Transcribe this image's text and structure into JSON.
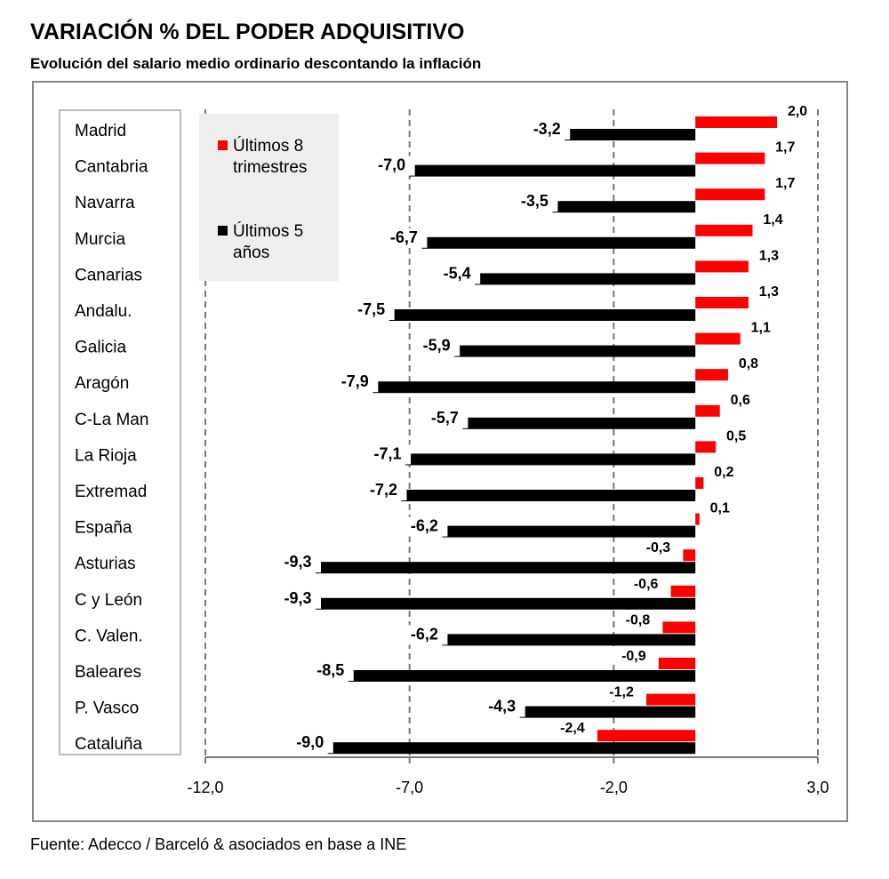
{
  "header": {
    "title": "VARIACIÓN % DEL PODER ADQUISITIVO",
    "subtitle": "Evolución del salario medio ordinario descontando la inflación"
  },
  "footer": {
    "source": "Fuente: Adecco / Barceló & asociados en base a INE"
  },
  "colors": {
    "series_8t": "#ff0000",
    "series_5a": "#000000",
    "gridline": "#777777",
    "legend_bg": "#eeeeee"
  },
  "chart_data": {
    "type": "bar",
    "orientation": "horizontal",
    "categories": [
      "Madrid",
      "Cantabria",
      "Navarra",
      "Murcia",
      "Canarias",
      "Andalu.",
      "Galicia",
      "Aragón",
      "C-La Man",
      "La Rioja",
      "Extremad",
      "España",
      "Asturias",
      "C y León",
      "C. Valen.",
      "Baleares",
      "P. Vasco",
      "Cataluña"
    ],
    "series": [
      {
        "name": "Últimos 8 trimestres",
        "color": "#ff0000",
        "values": [
          2.0,
          1.7,
          1.7,
          1.4,
          1.3,
          1.3,
          1.1,
          0.8,
          0.6,
          0.5,
          0.2,
          0.1,
          -0.3,
          -0.6,
          -0.8,
          -0.9,
          -1.2,
          -2.4
        ],
        "labels": [
          "2,0",
          "1,7",
          "1,7",
          "1,4",
          "1,3",
          "1,3",
          "1,1",
          "0,8",
          "0,6",
          "0,5",
          "0,2",
          "0,1",
          "-0,3",
          "-0,6",
          "-0,8",
          "-0,9",
          "-1,2",
          "-2,4"
        ]
      },
      {
        "name": "Últimos 5 años",
        "color": "#000000",
        "values": [
          -3.2,
          -7.0,
          -3.5,
          -6.7,
          -5.4,
          -7.5,
          -5.9,
          -7.9,
          -5.7,
          -7.1,
          -7.2,
          -6.2,
          -9.3,
          -9.3,
          -6.2,
          -8.5,
          -4.3,
          -9.0
        ],
        "labels": [
          "-3,2",
          "-7,0",
          "-3,5",
          "-6,7",
          "-5,4",
          "-7,5",
          "-5,9",
          "-7,9",
          "-5,7",
          "-7,1",
          "-7,2",
          "-6,2",
          "-9,3",
          "-9,3",
          "-6,2",
          "-8,5",
          "-4,3",
          "-9,0"
        ]
      }
    ],
    "legend": {
      "placement": "top-left",
      "entries": [
        {
          "line1": "Últimos 8",
          "line2": "trimestres",
          "color": "#ff0000"
        },
        {
          "line1": "Últimos 5",
          "line2": "años",
          "color": "#000000"
        }
      ]
    },
    "xlim": [
      -12.0,
      3.0
    ],
    "xticks": [
      -12.0,
      -7.0,
      -2.0,
      3.0
    ],
    "xtick_labels": [
      "-12,0",
      "-7,0",
      "-2,0",
      "3,0"
    ],
    "gridlines": "dashed vertical at ticks"
  }
}
